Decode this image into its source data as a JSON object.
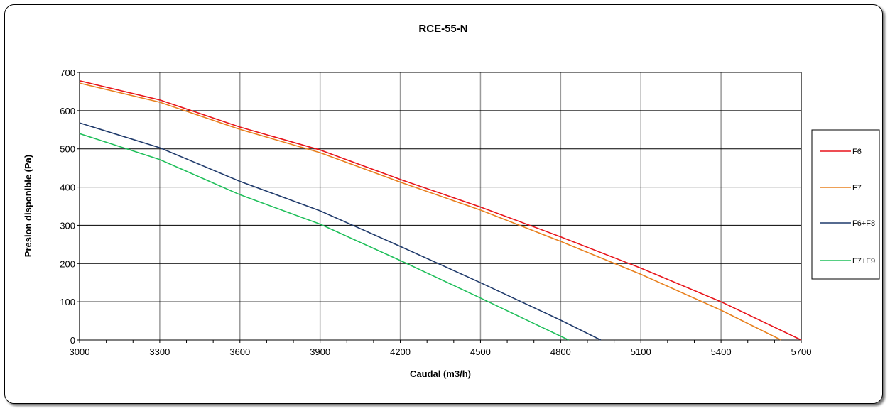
{
  "chart_data": {
    "type": "line",
    "title": "RCE-55-N",
    "xlabel": "Caudal (m3/h)",
    "ylabel": "Presion disponible (Pa)",
    "xlim": [
      3000,
      5700
    ],
    "ylim": [
      0,
      700
    ],
    "x_ticks": [
      "3000",
      "3300",
      "3600",
      "3900",
      "4200",
      "4500",
      "4800",
      "5100",
      "5400",
      "5700"
    ],
    "y_ticks": [
      "0",
      "100",
      "200",
      "300",
      "400",
      "500",
      "600",
      "700"
    ],
    "grid": true,
    "legend_position": "right",
    "series": [
      {
        "name": "F6",
        "color": "#e8141b",
        "points": [
          [
            3000,
            678
          ],
          [
            3300,
            628
          ],
          [
            3600,
            557
          ],
          [
            3900,
            497
          ],
          [
            4200,
            420
          ],
          [
            4500,
            348
          ],
          [
            4800,
            270
          ],
          [
            5100,
            188
          ],
          [
            5400,
            100
          ],
          [
            5700,
            0
          ]
        ]
      },
      {
        "name": "F7",
        "color": "#e8801e",
        "points": [
          [
            3000,
            672
          ],
          [
            3300,
            622
          ],
          [
            3600,
            551
          ],
          [
            3900,
            490
          ],
          [
            4200,
            413
          ],
          [
            4500,
            340
          ],
          [
            4800,
            258
          ],
          [
            5100,
            172
          ],
          [
            5400,
            78
          ],
          [
            5625,
            0
          ]
        ]
      },
      {
        "name": "F6+F8",
        "color": "#1f3a6b",
        "points": [
          [
            3000,
            568
          ],
          [
            3300,
            503
          ],
          [
            3600,
            415
          ],
          [
            3900,
            338
          ],
          [
            4200,
            245
          ],
          [
            4500,
            150
          ],
          [
            4800,
            52
          ],
          [
            4950,
            0
          ]
        ]
      },
      {
        "name": "F7+F9",
        "color": "#1fbf5a",
        "points": [
          [
            3000,
            540
          ],
          [
            3300,
            472
          ],
          [
            3600,
            380
          ],
          [
            3900,
            303
          ],
          [
            4200,
            208
          ],
          [
            4500,
            110
          ],
          [
            4830,
            0
          ]
        ]
      }
    ]
  }
}
